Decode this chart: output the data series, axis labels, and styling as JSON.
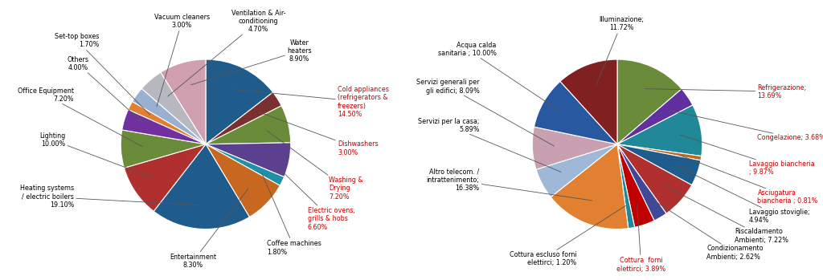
{
  "pie1": {
    "values": [
      14.5,
      3.0,
      7.2,
      6.6,
      1.8,
      8.3,
      19.1,
      10.0,
      7.2,
      4.0,
      1.7,
      3.0,
      4.7,
      8.9
    ],
    "colors": [
      "#1f5c8b",
      "#7b3030",
      "#6a8c3a",
      "#5c4090",
      "#2090a8",
      "#c86820",
      "#1f5c8b",
      "#b03030",
      "#6a8c3a",
      "#7030a0",
      "#e08030",
      "#9ab0d0",
      "#b8b8c0",
      "#d0a0b0"
    ],
    "labels": [
      "Cold appliances\n(refrigerators &\nfreezers)\n14.50%",
      "Dishwashers\n3.00%",
      "Washing &\nDrying\n7.20%",
      "Electric ovens,\ngrills & hobs\n6.60%",
      "Coffee machines\n1.80%",
      "Entertainment\n8.30%",
      "Heating systems\n/ electric boilers\n19.10%",
      "Lighting\n10.00%",
      "Office Equipment\n7.20%",
      "Others\n4.00%",
      "Set-top boxes\n1.70%",
      "Vacuum cleaners\n3.00%",
      "Ventilation & Air-\nconditioning\n4.70%",
      "Water\nheaters\n8.90%"
    ],
    "label_colors": [
      "#c00000",
      "#c00000",
      "#c00000",
      "#c00000",
      "#000000",
      "#000000",
      "#000000",
      "#000000",
      "#000000",
      "#000000",
      "#000000",
      "#000000",
      "#000000",
      "#000000"
    ],
    "startangle": 90
  },
  "pie2": {
    "values": [
      13.69,
      3.68,
      9.87,
      0.81,
      4.94,
      7.22,
      2.62,
      3.89,
      1.2,
      16.38,
      5.89,
      8.09,
      10.0,
      11.72
    ],
    "colors": [
      "#6a8c3a",
      "#6030a0",
      "#208898",
      "#c06820",
      "#1f5c8b",
      "#b03030",
      "#404898",
      "#c00000",
      "#208898",
      "#e08030",
      "#a0b8d8",
      "#c8a0b0",
      "#2858a0",
      "#802020"
    ],
    "labels": [
      "Refrigerazione;\n13.69%",
      "Congelazione; 3.68%",
      "Lavaggio biancheria\n; 9.87%",
      "Asciugatura\nbiancheria ; 0.81%",
      "Lavaggio stoviglie;\n4.94%",
      "Riscaldamento\nAmbienti; 7.22%",
      "Condizionamento\nAmbienti; 2.62%",
      "Cottura  forni\nelettirci; 3.89%",
      "Cottura escluso forni\nelettirci; 1.20%",
      "Altro telecom. /\nintrattenimento;\n16.38%",
      "Servizi per la casa;\n5.89%",
      "Servizi generali per\ngli edifici; 8.09%",
      "Acqua calda\nsanitaria ; 10.00%",
      "Illuminazione;\n11.72%"
    ],
    "label_colors": [
      "#c00000",
      "#c00000",
      "#c00000",
      "#c00000",
      "#000000",
      "#000000",
      "#000000",
      "#c00000",
      "#000000",
      "#000000",
      "#000000",
      "#000000",
      "#000000",
      "#000000"
    ],
    "startangle": 90
  }
}
